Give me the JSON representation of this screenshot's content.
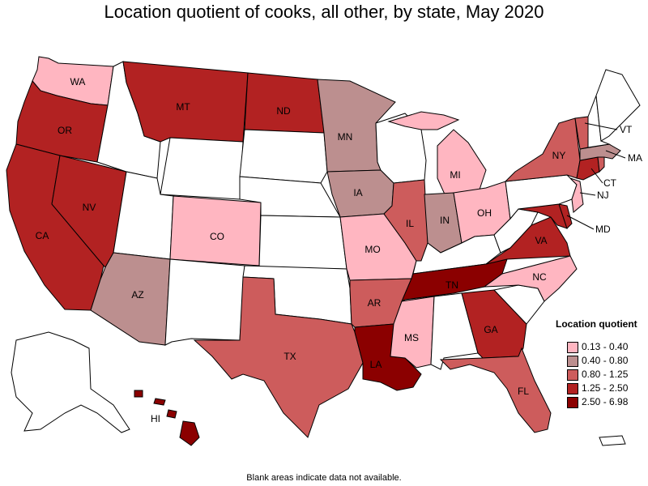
{
  "title": "Location quotient of cooks, all other, by state, May 2020",
  "legend": {
    "title": "Location quotient",
    "bins": [
      {
        "label": "0.13 - 0.40",
        "color": "#ffb6c1"
      },
      {
        "label": "0.40 - 0.80",
        "color": "#bc8f8f"
      },
      {
        "label": "0.80 - 1.25",
        "color": "#cd5c5c"
      },
      {
        "label": "1.25 - 2.50",
        "color": "#b22222"
      },
      {
        "label": "2.50 - 6.98",
        "color": "#8b0000"
      }
    ]
  },
  "nodata_color": "#ffffff",
  "footnote": "Blank areas indicate data not available.",
  "states": {
    "WA": {
      "label": "WA",
      "bin": 0
    },
    "OR": {
      "label": "OR",
      "bin": 3
    },
    "CA": {
      "label": "CA",
      "bin": 3
    },
    "NV": {
      "label": "NV",
      "bin": 3
    },
    "ID": {
      "label": "",
      "bin": -1
    },
    "MT": {
      "label": "MT",
      "bin": 3
    },
    "WY": {
      "label": "",
      "bin": -1
    },
    "UT": {
      "label": "",
      "bin": -1
    },
    "AZ": {
      "label": "AZ",
      "bin": 1
    },
    "CO": {
      "label": "CO",
      "bin": 0
    },
    "NM": {
      "label": "",
      "bin": -1
    },
    "ND": {
      "label": "ND",
      "bin": 3
    },
    "SD": {
      "label": "",
      "bin": -1
    },
    "NE": {
      "label": "",
      "bin": -1
    },
    "KS": {
      "label": "",
      "bin": -1
    },
    "OK": {
      "label": "",
      "bin": -1
    },
    "TX": {
      "label": "TX",
      "bin": 2
    },
    "MN": {
      "label": "MN",
      "bin": 1
    },
    "IA": {
      "label": "IA",
      "bin": 1
    },
    "MO": {
      "label": "MO",
      "bin": 0
    },
    "AR": {
      "label": "AR",
      "bin": 2
    },
    "LA": {
      "label": "LA",
      "bin": 4
    },
    "WI": {
      "label": "",
      "bin": -1
    },
    "IL": {
      "label": "IL",
      "bin": 2
    },
    "MI": {
      "label": "MI",
      "bin": 0
    },
    "IN": {
      "label": "IN",
      "bin": 1
    },
    "OH": {
      "label": "OH",
      "bin": 0
    },
    "KY": {
      "label": "",
      "bin": -1
    },
    "TN": {
      "label": "TN",
      "bin": 4
    },
    "MS": {
      "label": "MS",
      "bin": 0
    },
    "AL": {
      "label": "",
      "bin": -1
    },
    "GA": {
      "label": "GA",
      "bin": 3
    },
    "FL": {
      "label": "FL",
      "bin": 2
    },
    "SC": {
      "label": "",
      "bin": -1
    },
    "NC": {
      "label": "NC",
      "bin": 0
    },
    "VA": {
      "label": "VA",
      "bin": 3
    },
    "WV": {
      "label": "",
      "bin": -1
    },
    "MD": {
      "label": "MD",
      "bin": 3
    },
    "DE": {
      "label": "",
      "bin": 3
    },
    "PA": {
      "label": "",
      "bin": -1
    },
    "NJ": {
      "label": "NJ",
      "bin": 0
    },
    "NY": {
      "label": "NY",
      "bin": 2
    },
    "CT": {
      "label": "CT",
      "bin": 3
    },
    "RI": {
      "label": "",
      "bin": 2
    },
    "MA": {
      "label": "MA",
      "bin": 1
    },
    "VT": {
      "label": "VT",
      "bin": 2
    },
    "NH": {
      "label": "",
      "bin": -1
    },
    "ME": {
      "label": "",
      "bin": -1
    },
    "AK": {
      "label": "",
      "bin": -1
    },
    "HI": {
      "label": "HI",
      "bin": 4
    },
    "PR": {
      "label": "",
      "bin": -1
    }
  }
}
